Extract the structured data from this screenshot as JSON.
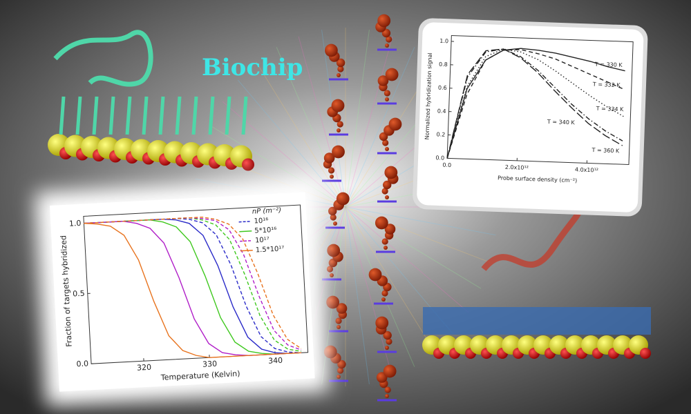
{
  "banner": "Biochip",
  "chart_data": [
    {
      "type": "line",
      "xlabel": "Temperature (Kelvin)",
      "ylabel": "Fraction of targets hybridized",
      "legend_title": "nP (m⁻²)",
      "x": [
        312,
        314,
        316,
        318,
        320,
        322,
        324,
        326,
        328,
        330,
        332,
        334,
        336,
        338,
        340,
        342,
        344
      ],
      "xlim": [
        312,
        345
      ],
      "xticks": [
        320,
        330,
        340
      ],
      "ylim": [
        0,
        1.05
      ],
      "yticks": [
        {
          "value": 0,
          "label": "0.0"
        },
        {
          "value": 0.5,
          "label": "0.5"
        },
        {
          "value": 1,
          "label": "1.0"
        }
      ],
      "legend": "upper-right",
      "series": [
        {
          "name": "10¹⁶",
          "color": "#2a2ac8",
          "values": [
            1,
            1,
            1,
            1,
            1,
            1,
            1,
            0.99,
            0.96,
            0.87,
            0.65,
            0.35,
            0.13,
            0.04,
            0.01,
            0,
            0
          ],
          "values_dashed": [
            1,
            1,
            1,
            1,
            1,
            1,
            1,
            1,
            0.99,
            0.96,
            0.87,
            0.65,
            0.35,
            0.13,
            0.04,
            0.01,
            0
          ]
        },
        {
          "name": "5*10¹⁶",
          "color": "#3fc81e",
          "values": [
            1,
            1,
            1,
            1,
            1,
            1,
            0.98,
            0.94,
            0.83,
            0.58,
            0.28,
            0.1,
            0.03,
            0.01,
            0,
            0,
            0
          ],
          "values_dashed": [
            1,
            1,
            1,
            1,
            1,
            1,
            1,
            1,
            1,
            0.98,
            0.94,
            0.83,
            0.58,
            0.28,
            0.1,
            0.03,
            0.01
          ]
        },
        {
          "name": "10¹⁷",
          "color": "#b01ec8",
          "values": [
            1,
            1,
            1,
            1,
            0.98,
            0.94,
            0.83,
            0.58,
            0.28,
            0.1,
            0.03,
            0.01,
            0,
            0,
            0,
            0,
            0
          ],
          "values_dashed": [
            1,
            1,
            1,
            1,
            1,
            1,
            1,
            1,
            1,
            0.99,
            0.97,
            0.9,
            0.72,
            0.42,
            0.17,
            0.06,
            0.02
          ]
        },
        {
          "name": "1.5*10¹⁷",
          "color": "#e8731e",
          "values": [
            1,
            0.99,
            0.97,
            0.9,
            0.72,
            0.42,
            0.17,
            0.06,
            0.02,
            0,
            0,
            0,
            0,
            0,
            0,
            0,
            0
          ],
          "values_dashed": [
            1,
            1,
            1,
            1,
            1,
            1,
            1,
            1,
            1,
            1,
            0.98,
            0.94,
            0.83,
            0.58,
            0.28,
            0.1,
            0.03
          ]
        }
      ]
    },
    {
      "type": "line",
      "xlabel": "Probe surface density (cm⁻²)",
      "ylabel": "Normalized hybridization signal",
      "x": [
        0,
        500000000000,
        1000000000000,
        1500000000000,
        2000000000000,
        2500000000000,
        3000000000000,
        3500000000000,
        4000000000000,
        4500000000000,
        5000000000000
      ],
      "xlim": [
        0,
        5200000000000
      ],
      "xticks": [
        {
          "value": 0,
          "label": "0.0"
        },
        {
          "value": 2000000000000,
          "label": "2.0x10¹²"
        },
        {
          "value": 4000000000000,
          "label": "4.0x10¹²"
        }
      ],
      "ylim": [
        0,
        1.05
      ],
      "yticks": [
        {
          "value": 0,
          "label": "0.0"
        },
        {
          "value": 0.2,
          "label": "0.2"
        },
        {
          "value": 0.4,
          "label": "0.4"
        },
        {
          "value": 0.6,
          "label": "0.6"
        },
        {
          "value": 0.8,
          "label": "0.8"
        },
        {
          "value": 1,
          "label": "1.0"
        }
      ],
      "series": [
        {
          "name": "T = 330 K",
          "color": "#222222",
          "dash": "solid",
          "values": [
            0,
            0.6,
            0.85,
            0.94,
            0.96,
            0.95,
            0.93,
            0.9,
            0.87,
            0.83,
            0.8
          ]
        },
        {
          "name": "T = 332 K",
          "color": "#222222",
          "dash": "dashed",
          "values": [
            0,
            0.55,
            0.85,
            0.94,
            0.95,
            0.92,
            0.88,
            0.82,
            0.76,
            0.7,
            0.64
          ]
        },
        {
          "name": "T = 334 K",
          "color": "#222222",
          "dash": "dotted",
          "values": [
            0,
            0.62,
            0.88,
            0.95,
            0.93,
            0.87,
            0.78,
            0.68,
            0.58,
            0.49,
            0.41
          ]
        },
        {
          "name": "T = 340 K",
          "color": "#222222",
          "dash": "dash-dot",
          "values": [
            0,
            0.7,
            0.92,
            0.95,
            0.89,
            0.78,
            0.64,
            0.5,
            0.38,
            0.28,
            0.2
          ]
        },
        {
          "name": "T = 360 K",
          "color": "#222222",
          "dash": "long-dash",
          "values": [
            0,
            0.72,
            0.93,
            0.95,
            0.88,
            0.76,
            0.61,
            0.47,
            0.34,
            0.24,
            0.16
          ]
        }
      ]
    }
  ]
}
